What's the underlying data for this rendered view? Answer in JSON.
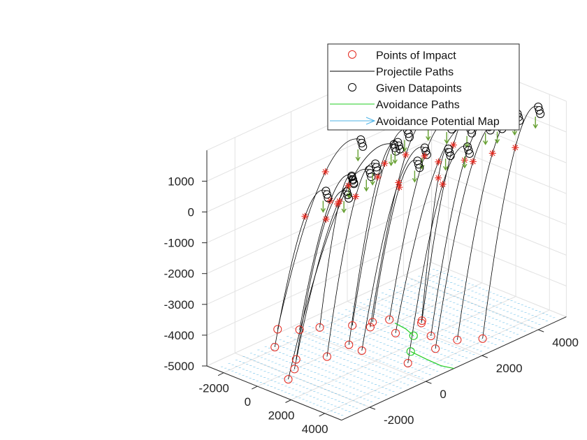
{
  "chart_data": {
    "type": "scatter3d",
    "axes": {
      "x": {
        "ticks": [
          "-2000",
          "0",
          "2000",
          "4000"
        ],
        "range": [
          -3000,
          5000
        ]
      },
      "y": {
        "ticks": [
          "-2000",
          "0",
          "2000",
          "4000"
        ],
        "range": [
          -3000,
          5000
        ]
      },
      "z": {
        "ticks": [
          "1000",
          "0",
          "-1000",
          "-2000",
          "-3000",
          "-4000",
          "-5000"
        ],
        "range": [
          -5000,
          2000
        ]
      },
      "grid": true
    },
    "legend": {
      "placement": "top-right",
      "entries": [
        {
          "label": "Points of Impact",
          "marker": "circle",
          "color": "#e3281e"
        },
        {
          "label": "Projectile Paths",
          "marker": "line",
          "color": "#000000"
        },
        {
          "label": "Given Datapoints",
          "marker": "circle",
          "color": "#000000"
        },
        {
          "label": "Avoidance Paths",
          "marker": "line",
          "color": "#22cc22"
        },
        {
          "label": "Avoidance Potential Map",
          "marker": "arrow",
          "color": "#4db3e6"
        }
      ]
    },
    "colors": {
      "impact": "#e3281e",
      "path": "#000000",
      "datapoint": "#000000",
      "avoidance": "#22cc22",
      "potential": "#4db3e6",
      "arrow": "#66a032"
    },
    "projectiles": [
      {
        "impact": [
          -1800,
          -1200,
          -4300
        ],
        "apex": [
          -1200,
          1400,
          900
        ]
      },
      {
        "impact": [
          -1500,
          -600,
          -4500
        ],
        "apex": [
          -900,
          900,
          0
        ]
      },
      {
        "impact": [
          -1300,
          -1600,
          -4600
        ],
        "apex": [
          -1100,
          100,
          -200
        ]
      },
      {
        "impact": [
          -800,
          -300,
          -4400
        ],
        "apex": [
          -400,
          600,
          200
        ]
      },
      {
        "impact": [
          -200,
          -1500,
          -4800
        ],
        "apex": [
          -200,
          300,
          -100
        ]
      },
      {
        "impact": [
          200,
          -1800,
          -4900
        ],
        "apex": [
          300,
          800,
          500
        ]
      },
      {
        "impact": [
          500,
          -2200,
          -5000
        ],
        "apex": [
          600,
          1500,
          1100
        ]
      },
      {
        "impact": [
          800,
          -1000,
          -4700
        ],
        "apex": [
          500,
          900,
          700
        ]
      },
      {
        "impact": [
          300,
          200,
          -4300
        ],
        "apex": [
          900,
          1800,
          1500
        ]
      },
      {
        "impact": [
          1100,
          -400,
          -4500
        ],
        "apex": [
          1000,
          1400,
          1300
        ]
      },
      {
        "impact": [
          1200,
          300,
          -4200
        ],
        "apex": [
          1300,
          2400,
          1700
        ]
      },
      {
        "impact": [
          1700,
          -300,
          -4600
        ],
        "apex": [
          1600,
          2000,
          1000
        ]
      },
      {
        "impact": [
          1500,
          800,
          -4100
        ],
        "apex": [
          1900,
          2700,
          1600
        ]
      },
      {
        "impact": [
          2200,
          600,
          -4300
        ],
        "apex": [
          2600,
          3000,
          1500
        ]
      },
      {
        "impact": [
          2600,
          1300,
          -4100
        ],
        "apex": [
          2600,
          3200,
          2000
        ]
      },
      {
        "impact": [
          3300,
          1200,
          -4400
        ],
        "apex": [
          3200,
          3300,
          1600
        ]
      },
      {
        "impact": [
          3600,
          200,
          -4800
        ],
        "apex": [
          3300,
          2500,
          1200
        ]
      },
      {
        "impact": [
          3900,
          1000,
          -4600
        ],
        "apex": [
          3900,
          3300,
          1800
        ]
      },
      {
        "impact": [
          4200,
          1600,
          -4500
        ],
        "apex": [
          4100,
          3800,
          1900
        ]
      },
      {
        "impact": [
          4700,
          2200,
          -4600
        ],
        "apex": [
          4500,
          4300,
          2000
        ]
      },
      {
        "impact": [
          500,
          800,
          -4400
        ],
        "apex": [
          1000,
          2100,
          400
        ]
      },
      {
        "impact": [
          1900,
          1700,
          -4500
        ],
        "apex": [
          2000,
          2600,
          800
        ]
      }
    ],
    "avoidance_paths": [
      {
        "points": [
          [
            1500,
            1000,
            -4300
          ],
          [
            1800,
            1200,
            -4500
          ],
          [
            2100,
            1300,
            -4700
          ]
        ],
        "end_marker": true
      },
      {
        "points": [
          [
            3100,
            600,
            -4700
          ],
          [
            3700,
            800,
            -4900
          ],
          [
            4400,
            900,
            -5000
          ],
          [
            5000,
            1000,
            -5000
          ]
        ],
        "start_marker": true
      }
    ]
  }
}
